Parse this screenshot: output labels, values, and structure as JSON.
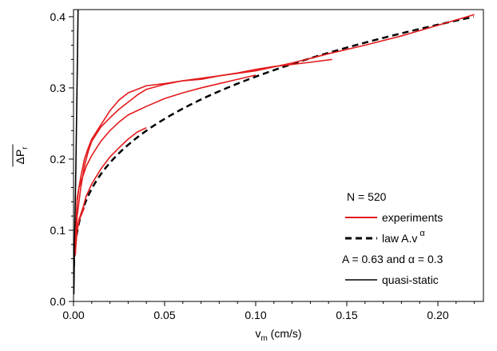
{
  "chart_data": {
    "type": "line",
    "xlabel": {
      "main": "v",
      "sub": "m",
      "rest": " (cm/s)"
    },
    "ylabel": {
      "main": "ΔP",
      "sub": "r"
    },
    "xlim": [
      0,
      0.225
    ],
    "ylim": [
      0,
      0.41
    ],
    "x_ticks": [
      "0.00",
      "0.05",
      "0.10",
      "0.15",
      "0.20"
    ],
    "x_tick_values": [
      0,
      0.05,
      0.1,
      0.15,
      0.2
    ],
    "y_ticks": [
      "0.0",
      "0.1",
      "0.2",
      "0.3",
      "0.4"
    ],
    "y_tick_values": [
      0,
      0.1,
      0.2,
      0.3,
      0.4
    ],
    "grid": false,
    "legend_position": "bottom-right",
    "legend": {
      "header": "N = 520",
      "entries": [
        {
          "label": "experiments",
          "style": "red-solid"
        },
        {
          "label": "law A.v",
          "superscript": "α",
          "style": "black-dashed"
        },
        {
          "label": "A = 0.63 and α = 0.3",
          "style": "none"
        },
        {
          "label": "quasi-static",
          "style": "black-solid"
        }
      ]
    },
    "law": {
      "A": 0.63,
      "alpha": 0.3
    },
    "colors": {
      "experiments": "#e31a1c",
      "law": "#000000",
      "quasi_static": "#000000"
    },
    "series": [
      {
        "style": "quasi-static",
        "x": [
          0.0002,
          0.0005,
          0.0009,
          0.0013,
          0.0017,
          0.0021,
          0.0025
        ],
        "y": [
          0.01,
          0.07,
          0.13,
          0.19,
          0.26,
          0.33,
          0.41
        ]
      },
      {
        "style": "experiment",
        "x": [
          0.001,
          0.002,
          0.004,
          0.006,
          0.008,
          0.01,
          0.015,
          0.02,
          0.025,
          0.03,
          0.04,
          0.05,
          0.06,
          0.08,
          0.1,
          0.12,
          0.14,
          0.16,
          0.18,
          0.2,
          0.22
        ],
        "y": [
          0.08,
          0.145,
          0.175,
          0.2,
          0.215,
          0.228,
          0.248,
          0.268,
          0.283,
          0.293,
          0.303,
          0.306,
          0.31,
          0.317,
          0.324,
          0.335,
          0.348,
          0.36,
          0.373,
          0.388,
          0.403
        ]
      },
      {
        "style": "experiment",
        "x": [
          0.001,
          0.002,
          0.004,
          0.006,
          0.008,
          0.01,
          0.015,
          0.02,
          0.025,
          0.03,
          0.035,
          0.04,
          0.05,
          0.06,
          0.07,
          0.08,
          0.09,
          0.1,
          0.11,
          0.12,
          0.13,
          0.142
        ],
        "y": [
          0.065,
          0.12,
          0.16,
          0.19,
          0.21,
          0.225,
          0.245,
          0.258,
          0.27,
          0.28,
          0.29,
          0.298,
          0.305,
          0.31,
          0.312,
          0.317,
          0.321,
          0.326,
          0.33,
          0.333,
          0.336,
          0.34
        ]
      },
      {
        "style": "experiment",
        "x": [
          0.001,
          0.002,
          0.003,
          0.005,
          0.007,
          0.01,
          0.015,
          0.02,
          0.025,
          0.03,
          0.035,
          0.04,
          0.05,
          0.06,
          0.07,
          0.08,
          0.09,
          0.1
        ],
        "y": [
          0.07,
          0.14,
          0.16,
          0.175,
          0.19,
          0.205,
          0.225,
          0.24,
          0.252,
          0.262,
          0.268,
          0.274,
          0.285,
          0.293,
          0.3,
          0.306,
          0.312,
          0.318
        ]
      },
      {
        "style": "experiment",
        "x": [
          0.001,
          0.002,
          0.003,
          0.005,
          0.007,
          0.01,
          0.015,
          0.02,
          0.025,
          0.03,
          0.035,
          0.04
        ],
        "y": [
          0.07,
          0.1,
          0.115,
          0.13,
          0.148,
          0.165,
          0.186,
          0.203,
          0.216,
          0.228,
          0.238,
          0.244
        ]
      },
      {
        "style": "experiment",
        "x": [
          0.002,
          0.003,
          0.004,
          0.005,
          0.006
        ],
        "y": [
          0.1,
          0.112,
          0.12,
          0.126,
          0.132
        ]
      }
    ]
  }
}
